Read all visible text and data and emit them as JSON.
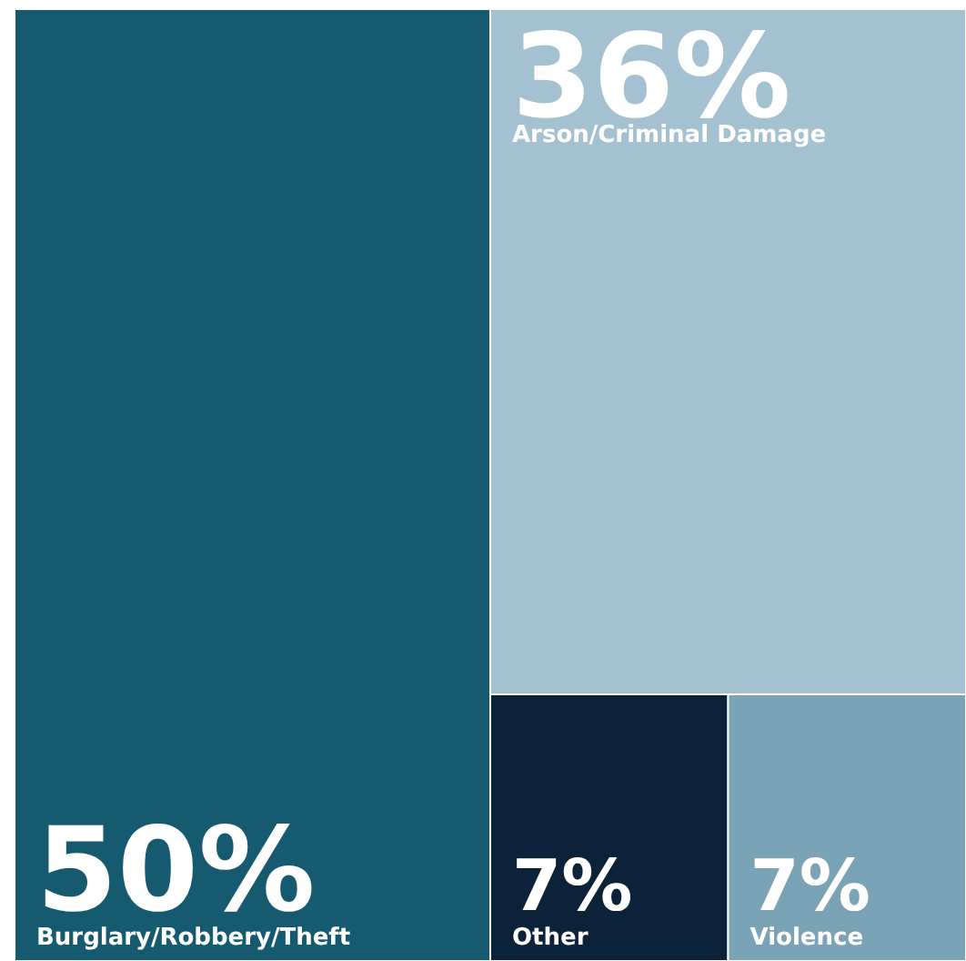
{
  "chart_data": {
    "type": "other",
    "categories": [
      "Burglary/Robbery/Theft",
      "Arson/Criminal Damage",
      "Other",
      "Violence"
    ],
    "values": [
      50,
      36,
      7,
      7
    ],
    "value_labels": [
      "50%",
      "36%",
      "7%",
      "7%"
    ],
    "colors": [
      "#165a70",
      "#a3c1d1",
      "#0b2238",
      "#7aa3b5"
    ]
  }
}
